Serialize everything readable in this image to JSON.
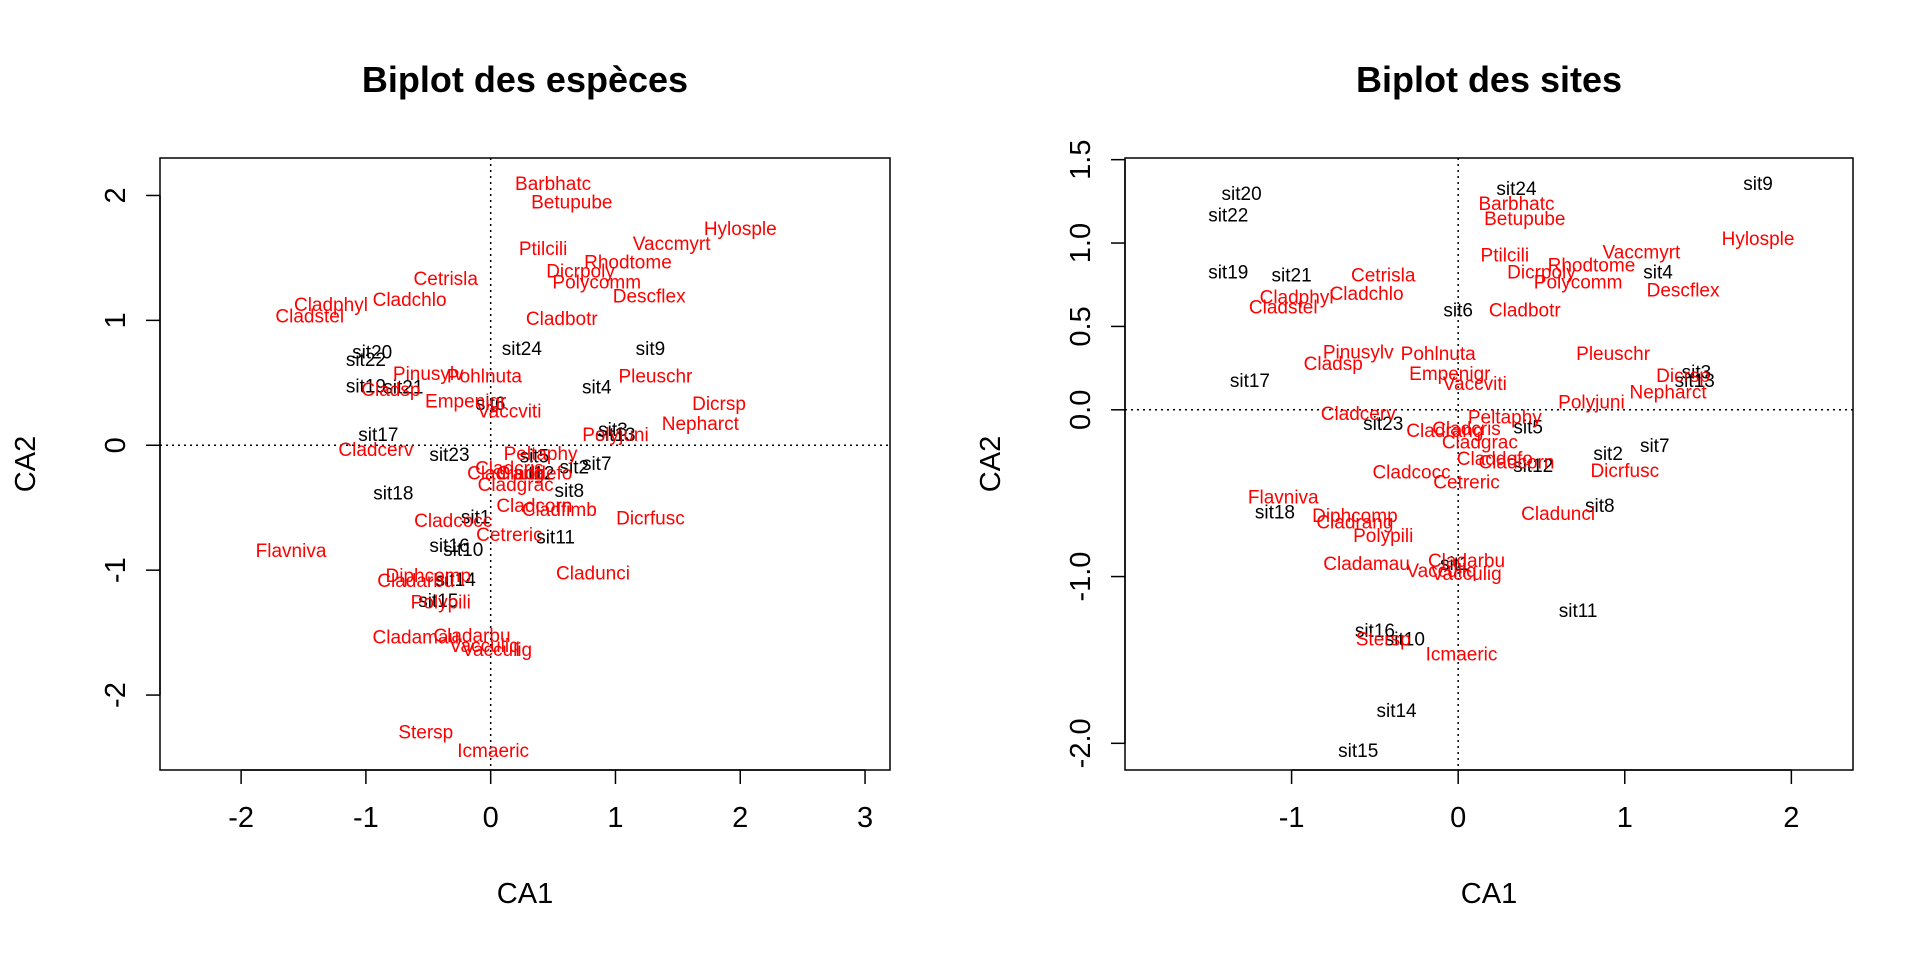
{
  "chart_data": [
    {
      "type": "scatter",
      "title": "Biplot des espèces",
      "xlabel": "CA1",
      "ylabel": "CA2",
      "xlim": [
        -2.65,
        3.2
      ],
      "ylim": [
        -2.6,
        2.3
      ],
      "xticks": [
        -2,
        -1,
        0,
        1,
        2,
        3
      ],
      "yticks": [
        -2,
        -1,
        0,
        1,
        2
      ],
      "xtick_labels": [
        "-2",
        "-1",
        "0",
        "1",
        "2",
        "3"
      ],
      "ytick_labels": [
        "-2",
        "-1",
        "0",
        "1",
        "2"
      ],
      "reference_lines": "dotted lines at CA1 = 0 and CA2 = 0",
      "series": [
        {
          "name": "",
          "color": "#000000",
          "points": [
            {
              "label": "sit20",
              "x": -0.95,
              "y": 0.75
            },
            {
              "label": "sit22",
              "x": -1.0,
              "y": 0.69
            },
            {
              "label": "sit19",
              "x": -1.0,
              "y": 0.48
            },
            {
              "label": "sit21",
              "x": -0.7,
              "y": 0.47
            },
            {
              "label": "sit24",
              "x": 0.25,
              "y": 0.78
            },
            {
              "label": "sit9",
              "x": 1.28,
              "y": 0.78
            },
            {
              "label": "sit4",
              "x": 0.85,
              "y": 0.47
            },
            {
              "label": "sit6",
              "x": 0.0,
              "y": 0.34
            },
            {
              "label": "sit17",
              "x": -0.9,
              "y": 0.09
            },
            {
              "label": "sit23",
              "x": -0.33,
              "y": -0.07
            },
            {
              "label": "sit3",
              "x": 0.98,
              "y": 0.13
            },
            {
              "label": "sit13",
              "x": 1.0,
              "y": 0.09
            },
            {
              "label": "sit5",
              "x": 0.35,
              "y": -0.08
            },
            {
              "label": "sit12",
              "x": 0.35,
              "y": -0.22
            },
            {
              "label": "sit2",
              "x": 0.67,
              "y": -0.17
            },
            {
              "label": "sit7",
              "x": 0.85,
              "y": -0.14
            },
            {
              "label": "sit8",
              "x": 0.63,
              "y": -0.36
            },
            {
              "label": "sit18",
              "x": -0.78,
              "y": -0.38
            },
            {
              "label": "sit1",
              "x": -0.12,
              "y": -0.57
            },
            {
              "label": "sit11",
              "x": 0.52,
              "y": -0.73
            },
            {
              "label": "sit16",
              "x": -0.33,
              "y": -0.8
            },
            {
              "label": "sit10",
              "x": -0.22,
              "y": -0.83
            },
            {
              "label": "sit14",
              "x": -0.28,
              "y": -1.07
            },
            {
              "label": "sit15",
              "x": -0.42,
              "y": -1.24
            }
          ]
        },
        {
          "name": "",
          "color": "#ff0000",
          "points": [
            {
              "label": "Barbhatc",
              "x": 0.5,
              "y": 2.1
            },
            {
              "label": "Betupube",
              "x": 0.65,
              "y": 1.95
            },
            {
              "label": "Hylosple",
              "x": 2.0,
              "y": 1.74
            },
            {
              "label": "Vaccmyrt",
              "x": 1.45,
              "y": 1.62
            },
            {
              "label": "Ptilcili",
              "x": 0.42,
              "y": 1.58
            },
            {
              "label": "Rhodtome",
              "x": 1.1,
              "y": 1.47
            },
            {
              "label": "Dicrpoly",
              "x": 0.72,
              "y": 1.4
            },
            {
              "label": "Polycomm",
              "x": 0.85,
              "y": 1.31
            },
            {
              "label": "Descflex",
              "x": 1.27,
              "y": 1.2
            },
            {
              "label": "Cetrisla",
              "x": -0.36,
              "y": 1.34
            },
            {
              "label": "Cladphyl",
              "x": -1.28,
              "y": 1.13
            },
            {
              "label": "Cladchlo",
              "x": -0.65,
              "y": 1.17
            },
            {
              "label": "Cladstel",
              "x": -1.45,
              "y": 1.04
            },
            {
              "label": "Cladbotr",
              "x": 0.57,
              "y": 1.02
            },
            {
              "label": "Pinusylv",
              "x": -0.5,
              "y": 0.58
            },
            {
              "label": "Pohlnuta",
              "x": -0.05,
              "y": 0.56
            },
            {
              "label": "Cladsp",
              "x": -0.8,
              "y": 0.45
            },
            {
              "label": "Empenigr",
              "x": -0.2,
              "y": 0.36
            },
            {
              "label": "Vaccviti",
              "x": 0.15,
              "y": 0.28
            },
            {
              "label": "Pleuschr",
              "x": 1.32,
              "y": 0.56
            },
            {
              "label": "Dicrsp",
              "x": 1.83,
              "y": 0.34
            },
            {
              "label": "Nepharct",
              "x": 1.68,
              "y": 0.18
            },
            {
              "label": "Polyjuni",
              "x": 1.0,
              "y": 0.09
            },
            {
              "label": "Cladcerv",
              "x": -0.92,
              "y": -0.03
            },
            {
              "label": "Peltaphy",
              "x": 0.4,
              "y": -0.06
            },
            {
              "label": "Cladcris",
              "x": 0.15,
              "y": -0.18
            },
            {
              "label": "Cladrang",
              "x": 0.12,
              "y": -0.22
            },
            {
              "label": "Claddefo",
              "x": 0.35,
              "y": -0.22
            },
            {
              "label": "Cladgrac",
              "x": 0.2,
              "y": -0.31
            },
            {
              "label": "Cladcorn",
              "x": 0.35,
              "y": -0.48
            },
            {
              "label": "Cladcocc",
              "x": -0.3,
              "y": -0.6
            },
            {
              "label": "Cladfimb",
              "x": 0.55,
              "y": -0.51
            },
            {
              "label": "Cetreric",
              "x": 0.15,
              "y": -0.71
            },
            {
              "label": "Dicrfusc",
              "x": 1.28,
              "y": -0.58
            },
            {
              "label": "Flavniva",
              "x": -1.6,
              "y": -0.84
            },
            {
              "label": "Cladunci",
              "x": 0.82,
              "y": -1.02
            },
            {
              "label": "Diphcomp",
              "x": -0.5,
              "y": -1.04
            },
            {
              "label": "Cladarbu",
              "x": -0.6,
              "y": -1.08
            },
            {
              "label": "Polypili",
              "x": -0.4,
              "y": -1.25
            },
            {
              "label": "Cladamau",
              "x": -0.6,
              "y": -1.53
            },
            {
              "label": "Cladarbu",
              "x": -0.15,
              "y": -1.52
            },
            {
              "label": "Vacculiq",
              "x": -0.05,
              "y": -1.6
            },
            {
              "label": "Vacculig",
              "x": 0.05,
              "y": -1.63
            },
            {
              "label": "Stersp",
              "x": -0.52,
              "y": -2.29
            },
            {
              "label": "Icmaeric",
              "x": 0.02,
              "y": -2.44
            }
          ]
        }
      ]
    },
    {
      "type": "scatter",
      "title": "Biplot des sites",
      "xlabel": "CA1",
      "ylabel": "CA2",
      "xlim": [
        -2.0,
        2.37
      ],
      "ylim": [
        -2.16,
        1.51
      ],
      "xticks": [
        -1,
        0,
        1,
        2
      ],
      "yticks": [
        -2.0,
        -1.0,
        0.0,
        0.5,
        1.0,
        1.5
      ],
      "xtick_labels": [
        "-1",
        "0",
        "1",
        "2"
      ],
      "ytick_labels": [
        "-2.0",
        "-1.0",
        "0.0",
        "0.5",
        "1.0",
        "1.5"
      ],
      "reference_lines": "dotted lines at CA1 = 0 and CA2 = 0",
      "series": [
        {
          "name": "",
          "color": "#000000",
          "points": [
            {
              "label": "sit20",
              "x": -1.3,
              "y": 1.3
            },
            {
              "label": "sit22",
              "x": -1.38,
              "y": 1.17
            },
            {
              "label": "sit24",
              "x": 0.35,
              "y": 1.33
            },
            {
              "label": "sit9",
              "x": 1.8,
              "y": 1.36
            },
            {
              "label": "sit19",
              "x": -1.38,
              "y": 0.83
            },
            {
              "label": "sit21",
              "x": -1.0,
              "y": 0.81
            },
            {
              "label": "sit4",
              "x": 1.2,
              "y": 0.83
            },
            {
              "label": "sit6",
              "x": 0.0,
              "y": 0.6
            },
            {
              "label": "sit17",
              "x": -1.25,
              "y": 0.18
            },
            {
              "label": "sit3",
              "x": 1.43,
              "y": 0.23
            },
            {
              "label": "sit13",
              "x": 1.42,
              "y": 0.18
            },
            {
              "label": "sit23",
              "x": -0.45,
              "y": -0.08
            },
            {
              "label": "sit5",
              "x": 0.42,
              "y": -0.1
            },
            {
              "label": "sit7",
              "x": 1.18,
              "y": -0.21
            },
            {
              "label": "sit2",
              "x": 0.9,
              "y": -0.26
            },
            {
              "label": "sit12",
              "x": 0.45,
              "y": -0.33
            },
            {
              "label": "sit18",
              "x": -1.1,
              "y": -0.61
            },
            {
              "label": "sit8",
              "x": 0.85,
              "y": -0.57
            },
            {
              "label": "sit1",
              "x": -0.02,
              "y": -0.92
            },
            {
              "label": "sit11",
              "x": 0.72,
              "y": -1.2
            },
            {
              "label": "sit16",
              "x": -0.5,
              "y": -1.32
            },
            {
              "label": "sit10",
              "x": -0.32,
              "y": -1.37
            },
            {
              "label": "sit14",
              "x": -0.37,
              "y": -1.8
            },
            {
              "label": "sit15",
              "x": -0.6,
              "y": -2.04
            }
          ]
        },
        {
          "name": "",
          "color": "#ff0000",
          "points": [
            {
              "label": "Barbhatc",
              "x": 0.35,
              "y": 1.24
            },
            {
              "label": "Betupube",
              "x": 0.4,
              "y": 1.15
            },
            {
              "label": "Hylosple",
              "x": 1.8,
              "y": 1.03
            },
            {
              "label": "Vaccmyrt",
              "x": 1.1,
              "y": 0.95
            },
            {
              "label": "Ptilcili",
              "x": 0.28,
              "y": 0.93
            },
            {
              "label": "Rhodtome",
              "x": 0.8,
              "y": 0.87
            },
            {
              "label": "Dicrpoly",
              "x": 0.5,
              "y": 0.83
            },
            {
              "label": "Polycomm",
              "x": 0.72,
              "y": 0.77
            },
            {
              "label": "Descflex",
              "x": 1.35,
              "y": 0.72
            },
            {
              "label": "Cetrisla",
              "x": -0.45,
              "y": 0.81
            },
            {
              "label": "Cladphyl",
              "x": -0.97,
              "y": 0.68
            },
            {
              "label": "Cladchlo",
              "x": -0.55,
              "y": 0.7
            },
            {
              "label": "Cladstel",
              "x": -1.05,
              "y": 0.62
            },
            {
              "label": "Cladbotr",
              "x": 0.4,
              "y": 0.6
            },
            {
              "label": "Pinusylv",
              "x": -0.6,
              "y": 0.35
            },
            {
              "label": "Pohlnuta",
              "x": -0.12,
              "y": 0.34
            },
            {
              "label": "Cladsp",
              "x": -0.75,
              "y": 0.28
            },
            {
              "label": "Empenigr",
              "x": -0.05,
              "y": 0.22
            },
            {
              "label": "Vaccviti",
              "x": 0.1,
              "y": 0.16
            },
            {
              "label": "Pleuschr",
              "x": 0.93,
              "y": 0.34
            },
            {
              "label": "Dicrsp",
              "x": 1.35,
              "y": 0.21
            },
            {
              "label": "Nepharct",
              "x": 1.26,
              "y": 0.11
            },
            {
              "label": "Polyjuni",
              "x": 0.8,
              "y": 0.05
            },
            {
              "label": "Cladcerv",
              "x": -0.6,
              "y": -0.02
            },
            {
              "label": "Peltaphy",
              "x": 0.28,
              "y": -0.04
            },
            {
              "label": "Cladcris",
              "x": 0.05,
              "y": -0.11
            },
            {
              "label": "Cladrang",
              "x": -0.08,
              "y": -0.12
            },
            {
              "label": "Cladgrac",
              "x": 0.13,
              "y": -0.19
            },
            {
              "label": "Claddefo",
              "x": 0.22,
              "y": -0.29
            },
            {
              "label": "Cladcorn",
              "x": 0.35,
              "y": -0.31
            },
            {
              "label": "Cladcocc",
              "x": -0.28,
              "y": -0.37
            },
            {
              "label": "Dicrfusc",
              "x": 1.0,
              "y": -0.36
            },
            {
              "label": "Cetreric",
              "x": 0.05,
              "y": -0.43
            },
            {
              "label": "Flavniva",
              "x": -1.05,
              "y": -0.52
            },
            {
              "label": "Cladunci",
              "x": 0.6,
              "y": -0.62
            },
            {
              "label": "Diphcomp",
              "x": -0.62,
              "y": -0.63
            },
            {
              "label": "Cladrang",
              "x": -0.62,
              "y": -0.67
            },
            {
              "label": "Polypili",
              "x": -0.45,
              "y": -0.75
            },
            {
              "label": "Cladamau",
              "x": -0.55,
              "y": -0.92
            },
            {
              "label": "Cladarbu",
              "x": 0.05,
              "y": -0.9
            },
            {
              "label": "Vacculiq",
              "x": -0.1,
              "y": -0.96
            },
            {
              "label": "Vacculig",
              "x": 0.05,
              "y": -0.98
            },
            {
              "label": "Stersp",
              "x": -0.45,
              "y": -1.37
            },
            {
              "label": "Icmaeric",
              "x": 0.02,
              "y": -1.46
            }
          ]
        }
      ]
    }
  ]
}
